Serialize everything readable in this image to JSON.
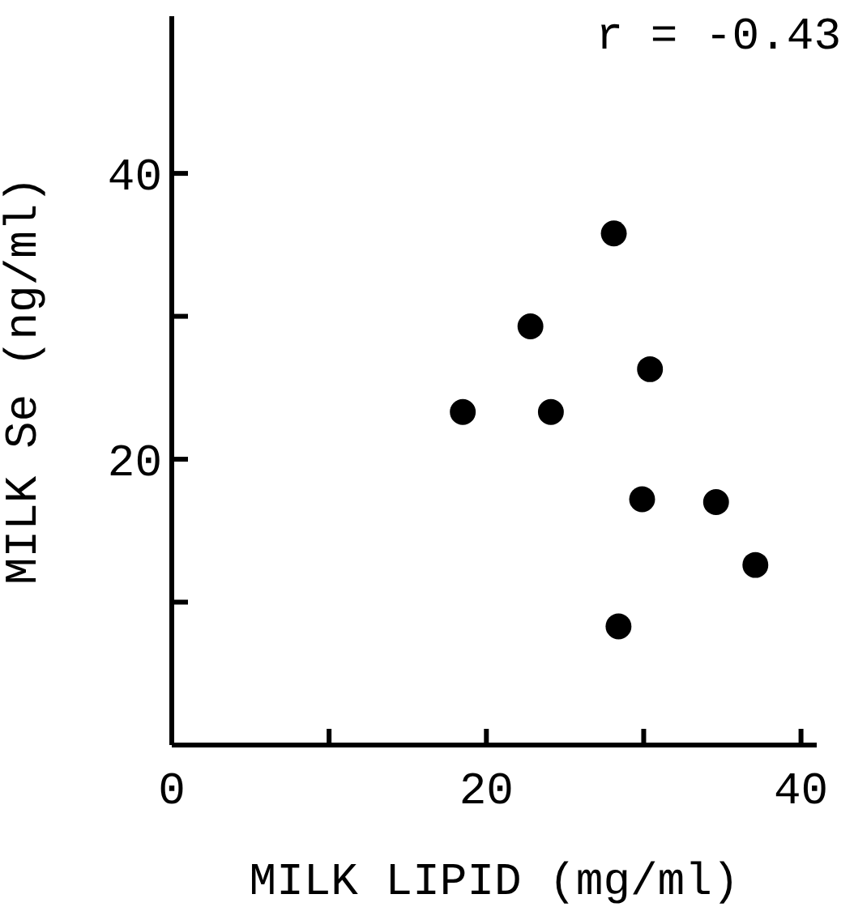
{
  "chart_data": {
    "type": "scatter",
    "xlabel": "MILK LIPID (mg/ml)",
    "ylabel": "MILK Se (ng/ml)",
    "annotations": [
      "r = -0.43"
    ],
    "x": [
      18.5,
      22.8,
      24.1,
      28.1,
      30.4,
      28.4,
      29.9,
      34.6,
      37.1
    ],
    "series": [
      {
        "color": "#000000",
        "values": [
          23.3,
          29.3,
          23.3,
          35.8,
          26.3,
          8.3,
          17.2,
          17.0,
          12.6
        ]
      }
    ],
    "xlim": [
      0,
      41
    ],
    "xticks": [
      0,
      {
        "value": 10,
        "label": null
      },
      20,
      {
        "value": 30,
        "label": null
      },
      40
    ],
    "ylim": [
      0,
      51
    ],
    "yticks": [
      {
        "value": 10,
        "label": null
      },
      20,
      {
        "value": 30,
        "label": null
      },
      40
    ],
    "marker": "circle",
    "grid": false,
    "legend": false
  }
}
